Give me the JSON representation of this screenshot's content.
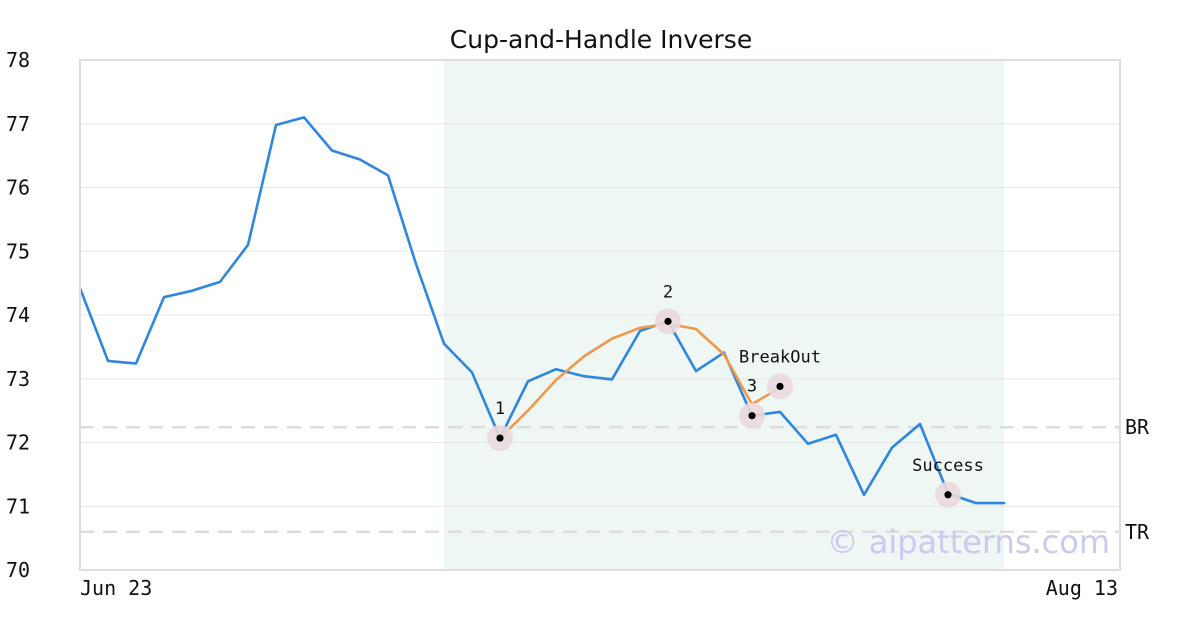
{
  "chart_data": {
    "type": "line",
    "title": "Cup-and-Handle Inverse",
    "xlabel": "",
    "ylabel": "",
    "ylim": [
      70,
      78
    ],
    "y_ticks": [
      "70",
      "71",
      "72",
      "73",
      "74",
      "75",
      "76",
      "77",
      "78"
    ],
    "x_tick_labels": [
      "Jun 23",
      "Aug 13"
    ],
    "grid": true,
    "series": [
      {
        "color": "#2f86e0",
        "values": [
          74.42,
          73.28,
          73.24,
          74.28,
          74.38,
          74.52,
          75.1,
          76.98,
          77.1,
          76.58,
          76.44,
          76.19,
          74.8,
          73.55,
          73.1,
          72.07,
          72.96,
          73.15,
          73.04,
          72.99,
          73.75,
          73.9,
          73.12,
          73.41,
          72.42,
          72.48,
          71.98,
          72.12,
          71.18,
          71.92,
          72.29,
          71.2,
          71.05,
          71.05
        ]
      },
      {
        "color": "#f0984a",
        "start_index": 15,
        "values": [
          72.07,
          72.5,
          72.98,
          73.35,
          73.63,
          73.8,
          73.86,
          73.78,
          73.38,
          72.6,
          72.86
        ]
      }
    ],
    "pattern_region": {
      "start_index": 13,
      "end_index": 33,
      "color": "#eef7f3"
    },
    "levels": [
      {
        "label": "BR",
        "value": 72.24
      },
      {
        "label": "TR",
        "value": 70.6
      }
    ],
    "annotations": [
      {
        "label": "1",
        "index": 15,
        "value": 72.07,
        "label_position": "above"
      },
      {
        "label": "2",
        "index": 21,
        "value": 73.9,
        "label_position": "above"
      },
      {
        "label": "3",
        "index": 24,
        "value": 72.42,
        "label_position": "above"
      },
      {
        "label": "BreakOut",
        "index": 25,
        "value": 72.88,
        "label_position": "above"
      },
      {
        "label": "Success",
        "index": 31,
        "value": 71.18,
        "label_position": "above"
      }
    ],
    "watermark": "© aipatterns.com"
  }
}
